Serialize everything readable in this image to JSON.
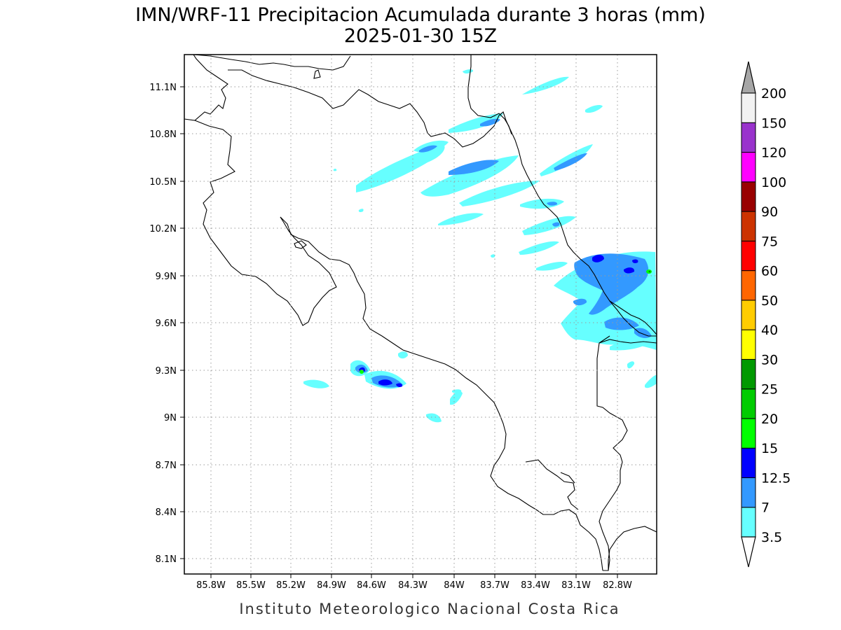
{
  "map": {
    "title_line1": "IMN/WRF-11 Precipitacion Acumulada durante 3 horas (mm)",
    "title_line2": "2025-01-30 15Z",
    "footer": "Instituto Meteorologico Nacional Costa Rica",
    "lon_ticks": [
      "85.8W",
      "85.5W",
      "85.2W",
      "84.9W",
      "84.6W",
      "84.3W",
      "84W",
      "83.7W",
      "83.4W",
      "83.1W",
      "82.8W"
    ],
    "lat_ticks": [
      "11.1N",
      "10.8N",
      "10.5N",
      "10.2N",
      "9.9N",
      "9.6N",
      "9.3N",
      "9N",
      "8.7N",
      "8.4N",
      "8.1N"
    ]
  },
  "colorbar": {
    "labels": [
      "3.5",
      "7",
      "12.5",
      "15",
      "20",
      "25",
      "30",
      "40",
      "50",
      "60",
      "75",
      "90",
      "100",
      "120",
      "150",
      "200"
    ],
    "colors": [
      "#66ffff",
      "#3399ff",
      "#0000ff",
      "#00ff00",
      "#00cc00",
      "#009900",
      "#ffff00",
      "#ffcc00",
      "#ff6600",
      "#ff0000",
      "#cc3300",
      "#990000",
      "#ff00ff",
      "#9933cc",
      "#f2f2f2"
    ],
    "top_arrow_color": "#a6a6a6",
    "bottom_arrow_color": "#ffffff"
  },
  "chart_data": {
    "type": "heatmap",
    "title": "IMN/WRF-11 Precipitacion Acumulada durante 3 horas (mm)",
    "subtitle": "2025-01-30 15Z",
    "x_ticks": [
      "85.8W",
      "85.5W",
      "85.2W",
      "84.9W",
      "84.6W",
      "84.3W",
      "84W",
      "83.7W",
      "83.4W",
      "83.1W",
      "82.8W"
    ],
    "y_ticks": [
      "11.1N",
      "10.8N",
      "10.5N",
      "10.2N",
      "9.9N",
      "9.6N",
      "9.3N",
      "9N",
      "8.7N",
      "8.4N",
      "8.1N"
    ],
    "grid": true,
    "legend": "right",
    "color_levels": [
      3.5,
      7,
      12.5,
      15,
      20,
      25,
      30,
      40,
      50,
      60,
      75,
      90,
      100,
      120,
      150,
      200
    ]
  }
}
